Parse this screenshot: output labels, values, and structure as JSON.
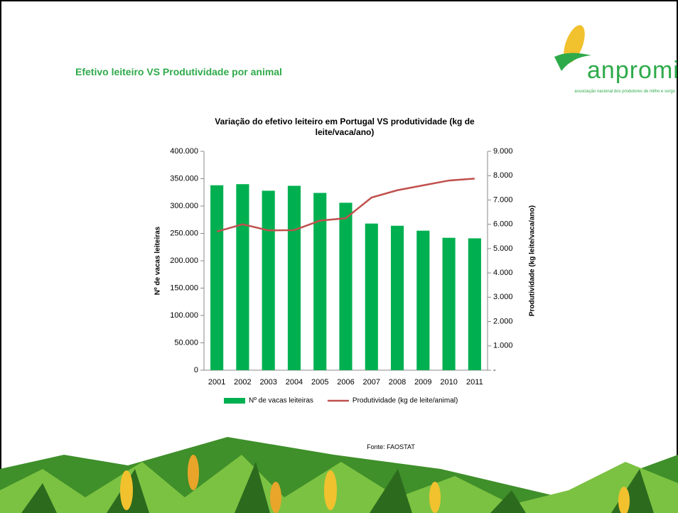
{
  "slide_title": "Efetivo leiteiro VS Produtividade por animal",
  "logo": {
    "name": "anpromis",
    "tagline": "associação nacional dos produtores de milho e sorgo"
  },
  "source": "Fonte: FAOSTAT",
  "chart_data": {
    "type": "bar",
    "title": "Variação do efetivo leiteiro em Portugal VS produtividade (kg de leite/vaca/ano)",
    "y_label": "Nº de vacas leiteiras",
    "y2_label": "Produtividade (kg leite/vaca/ano)",
    "categories": [
      "2001",
      "2002",
      "2003",
      "2004",
      "2005",
      "2006",
      "2007",
      "2008",
      "2009",
      "2010",
      "2011"
    ],
    "series": [
      {
        "name": "Nº de vacas leiteiras",
        "type": "bar",
        "color": "#00b050",
        "values": [
          338000,
          340000,
          328000,
          337000,
          324000,
          306000,
          268000,
          264000,
          255000,
          242000,
          241000
        ]
      },
      {
        "name": "Produtividade (kg de leite/animal)",
        "type": "line",
        "axis": "y2",
        "color": "#c0504d",
        "values": [
          5700,
          6000,
          5750,
          5760,
          6150,
          6250,
          7100,
          7400,
          7600,
          7800,
          7880
        ]
      }
    ],
    "ylim": [
      0,
      400000
    ],
    "yticks": [
      0,
      {
        "value": 50000,
        "label": "50.000"
      },
      {
        "value": 100000,
        "label": "100.000"
      },
      {
        "value": 150000,
        "label": "150.000"
      },
      {
        "value": 200000,
        "label": "200.000"
      },
      {
        "value": 250000,
        "label": "250.000"
      },
      {
        "value": 300000,
        "label": "300.000"
      },
      {
        "value": 350000,
        "label": "350.000"
      },
      {
        "value": 400000,
        "label": "400.000"
      }
    ],
    "y2lim": [
      0,
      9000
    ],
    "y2ticks": [
      {
        "value": 0,
        "label": "-"
      },
      {
        "value": 1000,
        "label": "1.000"
      },
      {
        "value": 2000,
        "label": "2.000"
      },
      {
        "value": 3000,
        "label": "3.000"
      },
      {
        "value": 4000,
        "label": "4.000"
      },
      {
        "value": 5000,
        "label": "5.000"
      },
      {
        "value": 6000,
        "label": "6.000"
      },
      {
        "value": 7000,
        "label": "7.000"
      },
      {
        "value": 8000,
        "label": "8.000"
      },
      {
        "value": 9000,
        "label": "9.000"
      }
    ],
    "grid": false,
    "legend": "bottom"
  }
}
